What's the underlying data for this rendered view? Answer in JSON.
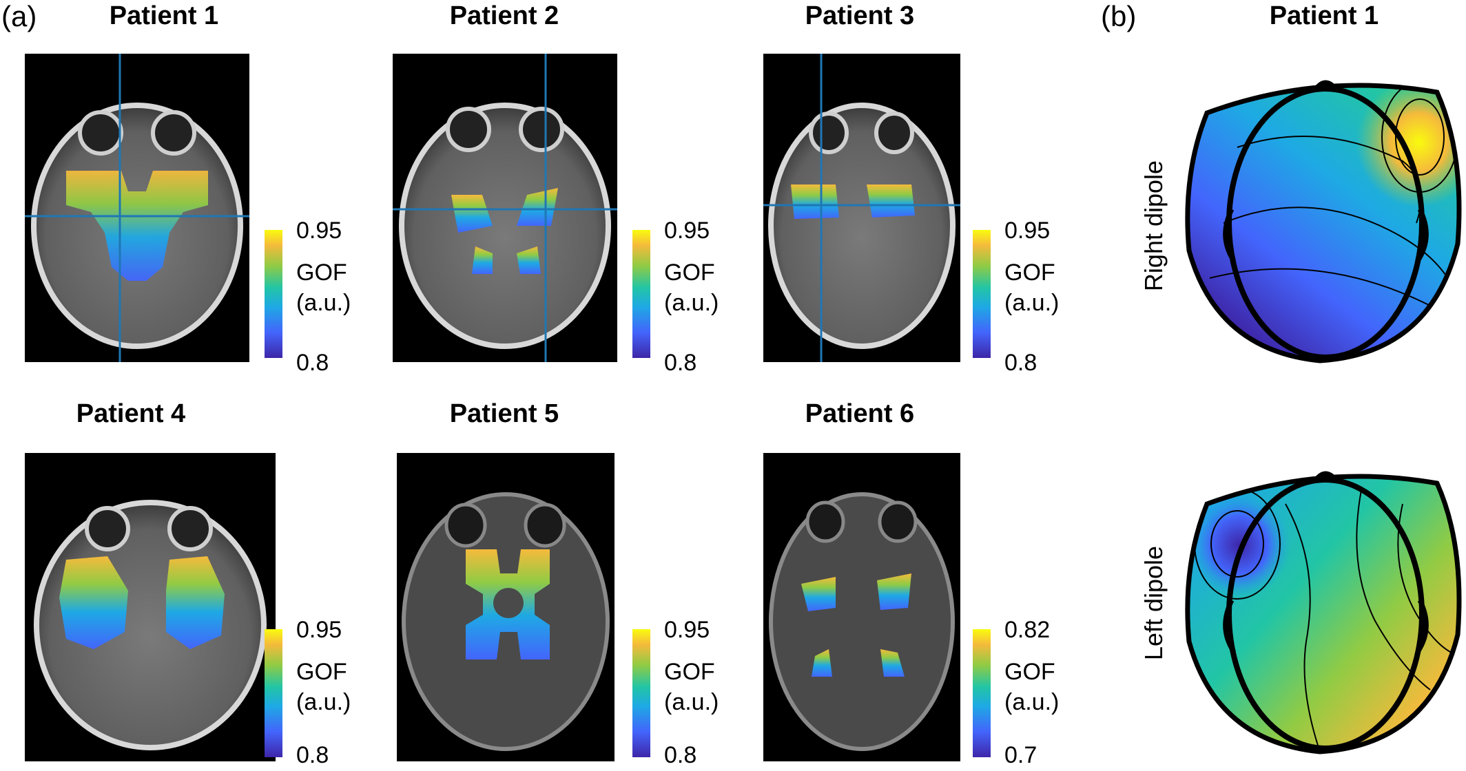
{
  "panel_a_letter": "(a)",
  "panel_b_letter": "(b)",
  "patients": [
    {
      "title": "Patient 1",
      "cb_max": "0.95",
      "cb_min": "0.8",
      "gof": "GOF",
      "unit": "(a.u.)"
    },
    {
      "title": "Patient 2",
      "cb_max": "0.95",
      "cb_min": "0.8",
      "gof": "GOF",
      "unit": "(a.u.)"
    },
    {
      "title": "Patient 3",
      "cb_max": "0.95",
      "cb_min": "0.8",
      "gof": "GOF",
      "unit": "(a.u.)"
    },
    {
      "title": "Patient 4",
      "cb_max": "0.95",
      "cb_min": "0.8",
      "gof": "GOF",
      "unit": "(a.u.)"
    },
    {
      "title": "Patient 5",
      "cb_max": "0.95",
      "cb_min": "0.8",
      "gof": "GOF",
      "unit": "(a.u.)"
    },
    {
      "title": "Patient 6",
      "cb_max": "0.82",
      "cb_min": "0.7",
      "gof": "GOF",
      "unit": "(a.u.)"
    }
  ],
  "panel_b": {
    "title": "Patient 1",
    "top_label": "Right dipole",
    "bottom_label": "Left dipole"
  },
  "colors": {
    "colormap": [
      "#3e26a8",
      "#4365fc",
      "#1ea9e4",
      "#22c5a5",
      "#91cb44",
      "#f5ba3c",
      "#f9fb0e"
    ],
    "crosshair": "#1f77b4"
  }
}
